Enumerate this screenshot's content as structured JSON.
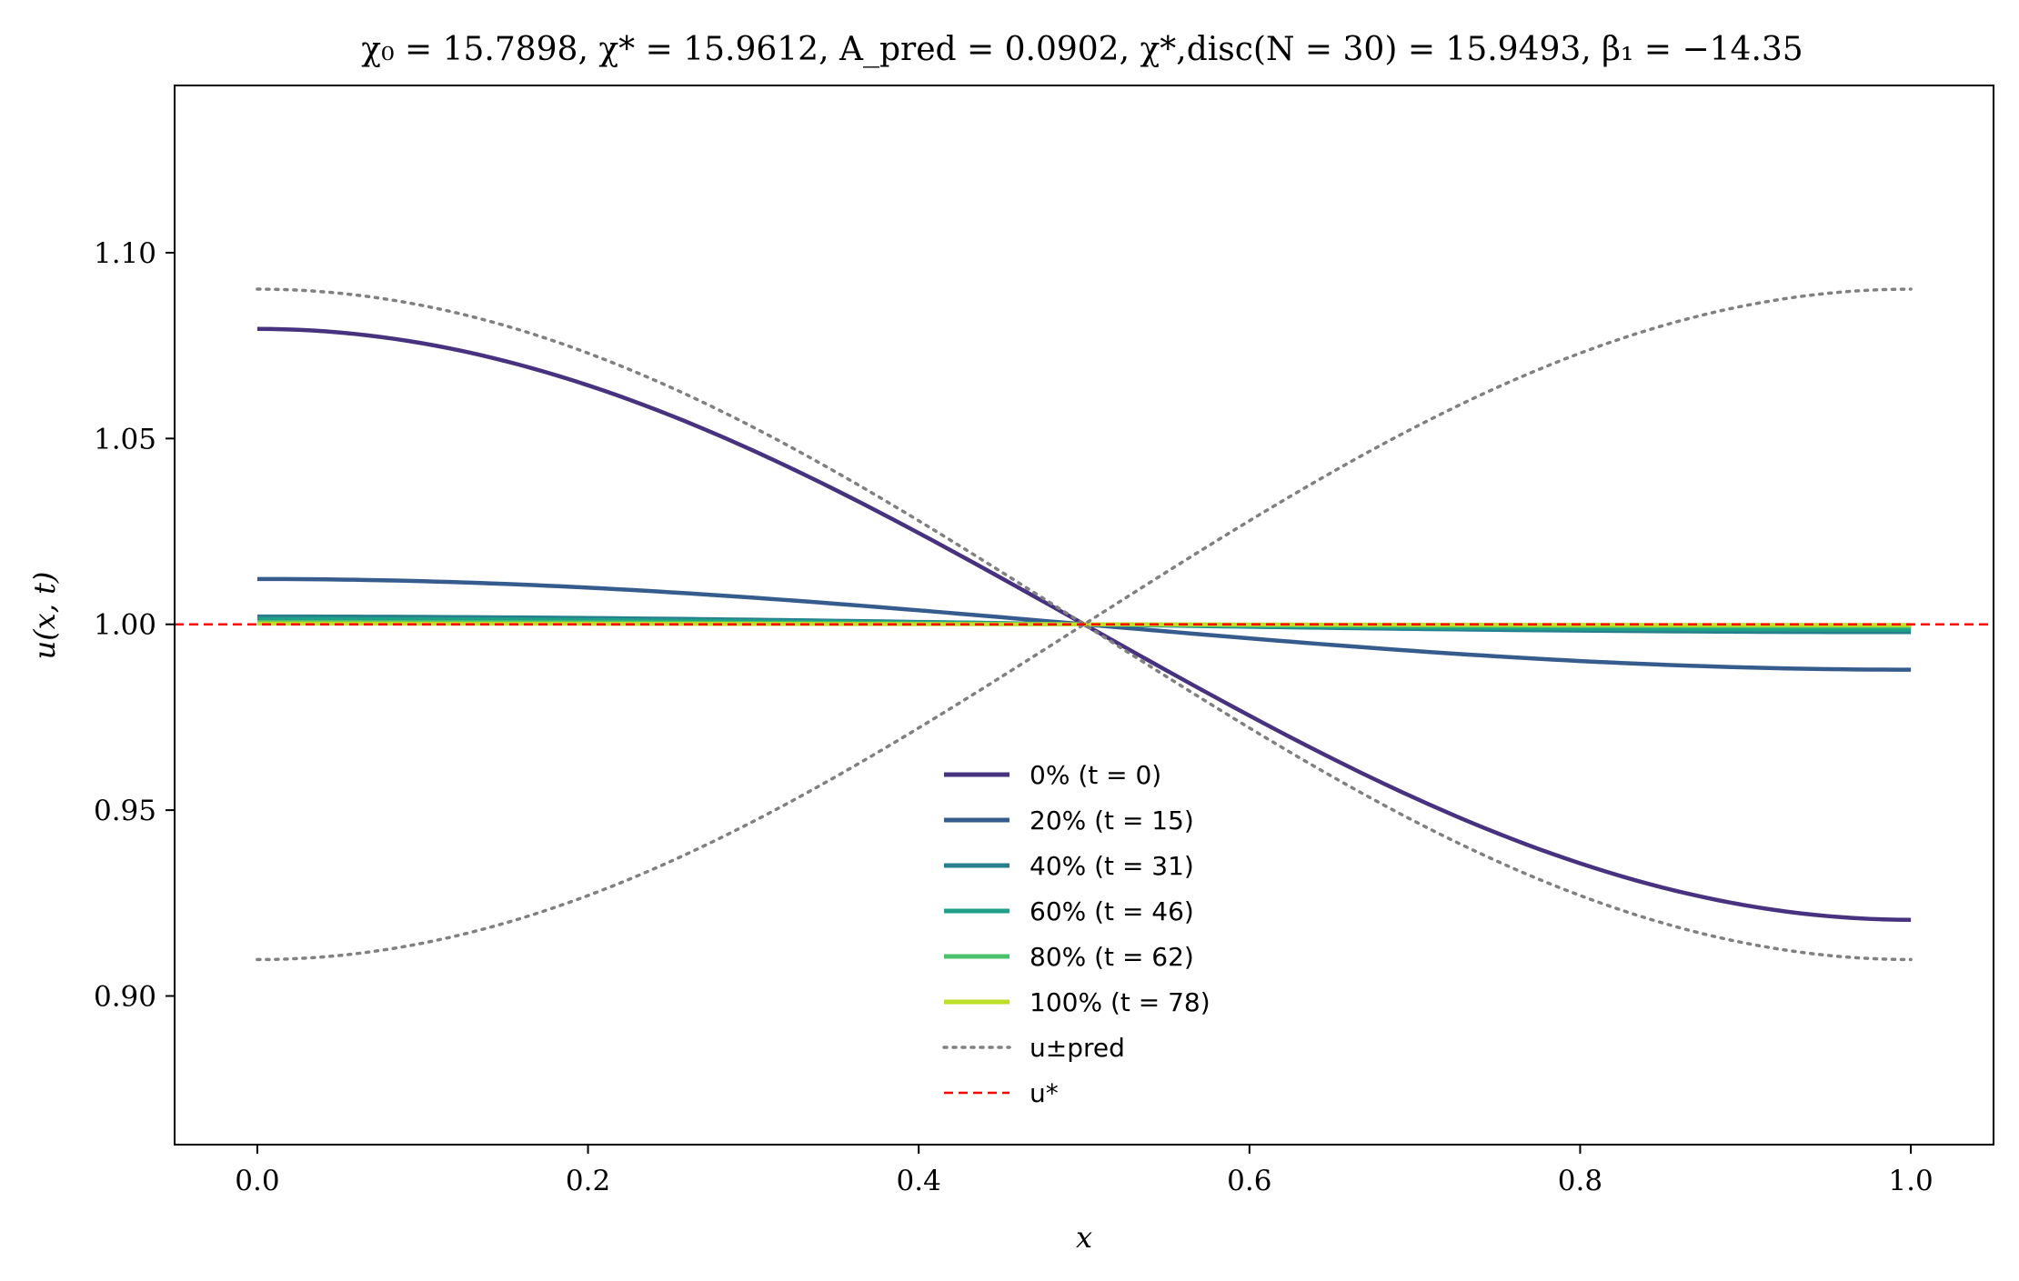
{
  "chart_data": {
    "type": "line",
    "title": "χ₀ = 15.7898,  χ* = 15.9612,  A_pred = 0.0902,  χ*,disc(N = 30) = 15.9493,  β₁ = −14.35",
    "xlabel": "x",
    "ylabel": "u(x, t)",
    "xlim": [
      -0.05,
      1.05
    ],
    "ylim": [
      0.86,
      1.145
    ],
    "x_ticks": [
      "0.0",
      "0.2",
      "0.4",
      "0.6",
      "0.8",
      "1.0"
    ],
    "y_ticks": [
      "0.90",
      "0.95",
      "1.00",
      "1.05",
      "1.10"
    ],
    "grid": false,
    "legend_position": "lower-center",
    "u_star": 1.0,
    "series": [
      {
        "name": "0% (t = 0)",
        "color": "#46327e",
        "amplitude": 0.0795
      },
      {
        "name": "20% (t = 15)",
        "color": "#365c8d",
        "amplitude": 0.0122
      },
      {
        "name": "40% (t = 31)",
        "color": "#277f8e",
        "amplitude": 0.0021
      },
      {
        "name": "60% (t = 46)",
        "color": "#1fa187",
        "amplitude": 0.0014
      },
      {
        "name": "80% (t = 62)",
        "color": "#4ac16d",
        "amplitude": 0.0006
      },
      {
        "name": "100% (t = 78)",
        "color": "#bddf26",
        "amplitude": 0.0002
      },
      {
        "name": "u±pred",
        "color": "#808080",
        "style": "dotted",
        "amplitude": 0.0902
      },
      {
        "name": "u*",
        "color": "#ff0000",
        "style": "dashed",
        "value": 1.0
      }
    ]
  }
}
